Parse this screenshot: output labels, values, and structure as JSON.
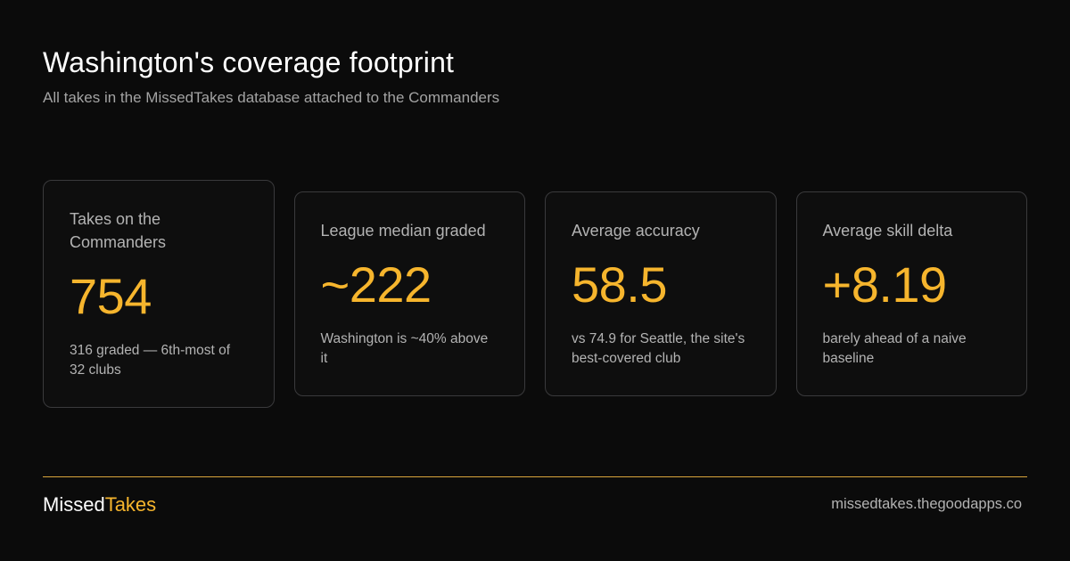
{
  "header": {
    "title": "Washington's coverage footprint",
    "subtitle": "All takes in the MissedTakes database attached to the Commanders"
  },
  "cards": [
    {
      "label": "Takes on the Commanders",
      "value": "754",
      "note": "316 graded — 6th-most of 32 clubs"
    },
    {
      "label": "League median graded",
      "value": "~222",
      "note": "Washington is ~40% above it"
    },
    {
      "label": "Average accuracy",
      "value": "58.5",
      "note": "vs 74.9 for Seattle, the site's best-covered club"
    },
    {
      "label": "Average skill delta",
      "value": "+8.19",
      "note": "barely ahead of a naive baseline"
    }
  ],
  "footer": {
    "brand_part1": "Missed",
    "brand_part2": "Takes",
    "url": "missedtakes.thegoodapps.co"
  },
  "colors": {
    "background": "#0b0b0b",
    "accent": "#f6b52d",
    "card_border": "#3a3a3c",
    "muted_text": "#b3b3b3"
  }
}
